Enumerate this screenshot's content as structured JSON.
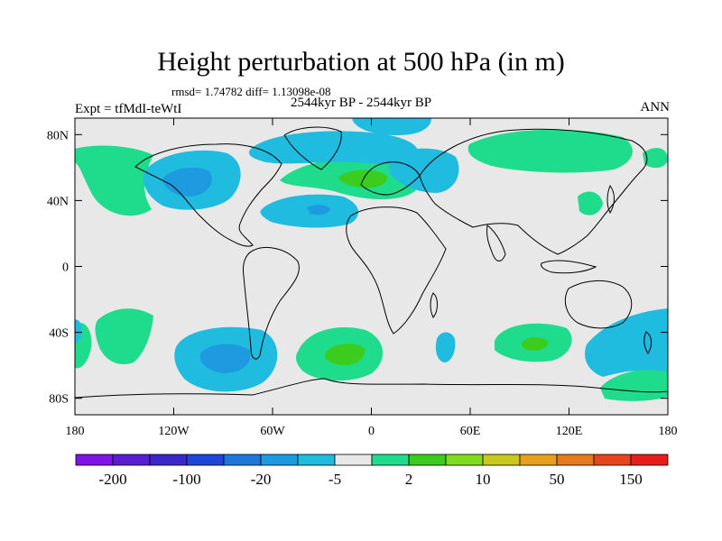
{
  "title": "Height perturbation at 500 hPa (in m)",
  "stats": "rmsd= 1.74782 diff= 1.13098e-08",
  "left_label": "Expt = tfMdI-teWtI",
  "center_label": "2544kyr BP - 2544kyr BP",
  "right_label": "ANN",
  "map": {
    "projection": "cylindrical equidistant",
    "lon_range": [
      -180,
      180
    ],
    "lat_range": [
      -90,
      90
    ],
    "background_color": "#e8e8e8",
    "lat_ticks": [
      {
        "value": 80,
        "label": "80N"
      },
      {
        "value": 40,
        "label": "40N"
      },
      {
        "value": 0,
        "label": "0"
      },
      {
        "value": -40,
        "label": "40S"
      },
      {
        "value": -80,
        "label": "80S"
      }
    ],
    "lon_ticks": [
      {
        "value": -180,
        "label": "180"
      },
      {
        "value": -120,
        "label": "120W"
      },
      {
        "value": -60,
        "label": "60W"
      },
      {
        "value": 0,
        "label": "0"
      },
      {
        "value": 60,
        "label": "60E"
      },
      {
        "value": 120,
        "label": "120E"
      },
      {
        "value": 180,
        "label": "180"
      }
    ]
  },
  "colorbar": {
    "colors": [
      "#7e14e6",
      "#5a1ed2",
      "#3c28c8",
      "#1e46d8",
      "#1e78dc",
      "#1e9ae0",
      "#20bce0",
      "#e8e8e8",
      "#1fdc8c",
      "#3ccc1e",
      "#82dc1e",
      "#c8c81e",
      "#e6a01e",
      "#e6781e",
      "#e6461e",
      "#e61e1e"
    ],
    "tick_labels": [
      {
        "after_box": 1,
        "label": "-200"
      },
      {
        "after_box": 3,
        "label": "-100"
      },
      {
        "after_box": 5,
        "label": "-20"
      },
      {
        "after_box": 7,
        "label": "-5"
      },
      {
        "after_box": 9,
        "label": "2"
      },
      {
        "after_box": 11,
        "label": "10"
      },
      {
        "after_box": 13,
        "label": "50"
      },
      {
        "after_box": 15,
        "label": "150"
      }
    ]
  }
}
